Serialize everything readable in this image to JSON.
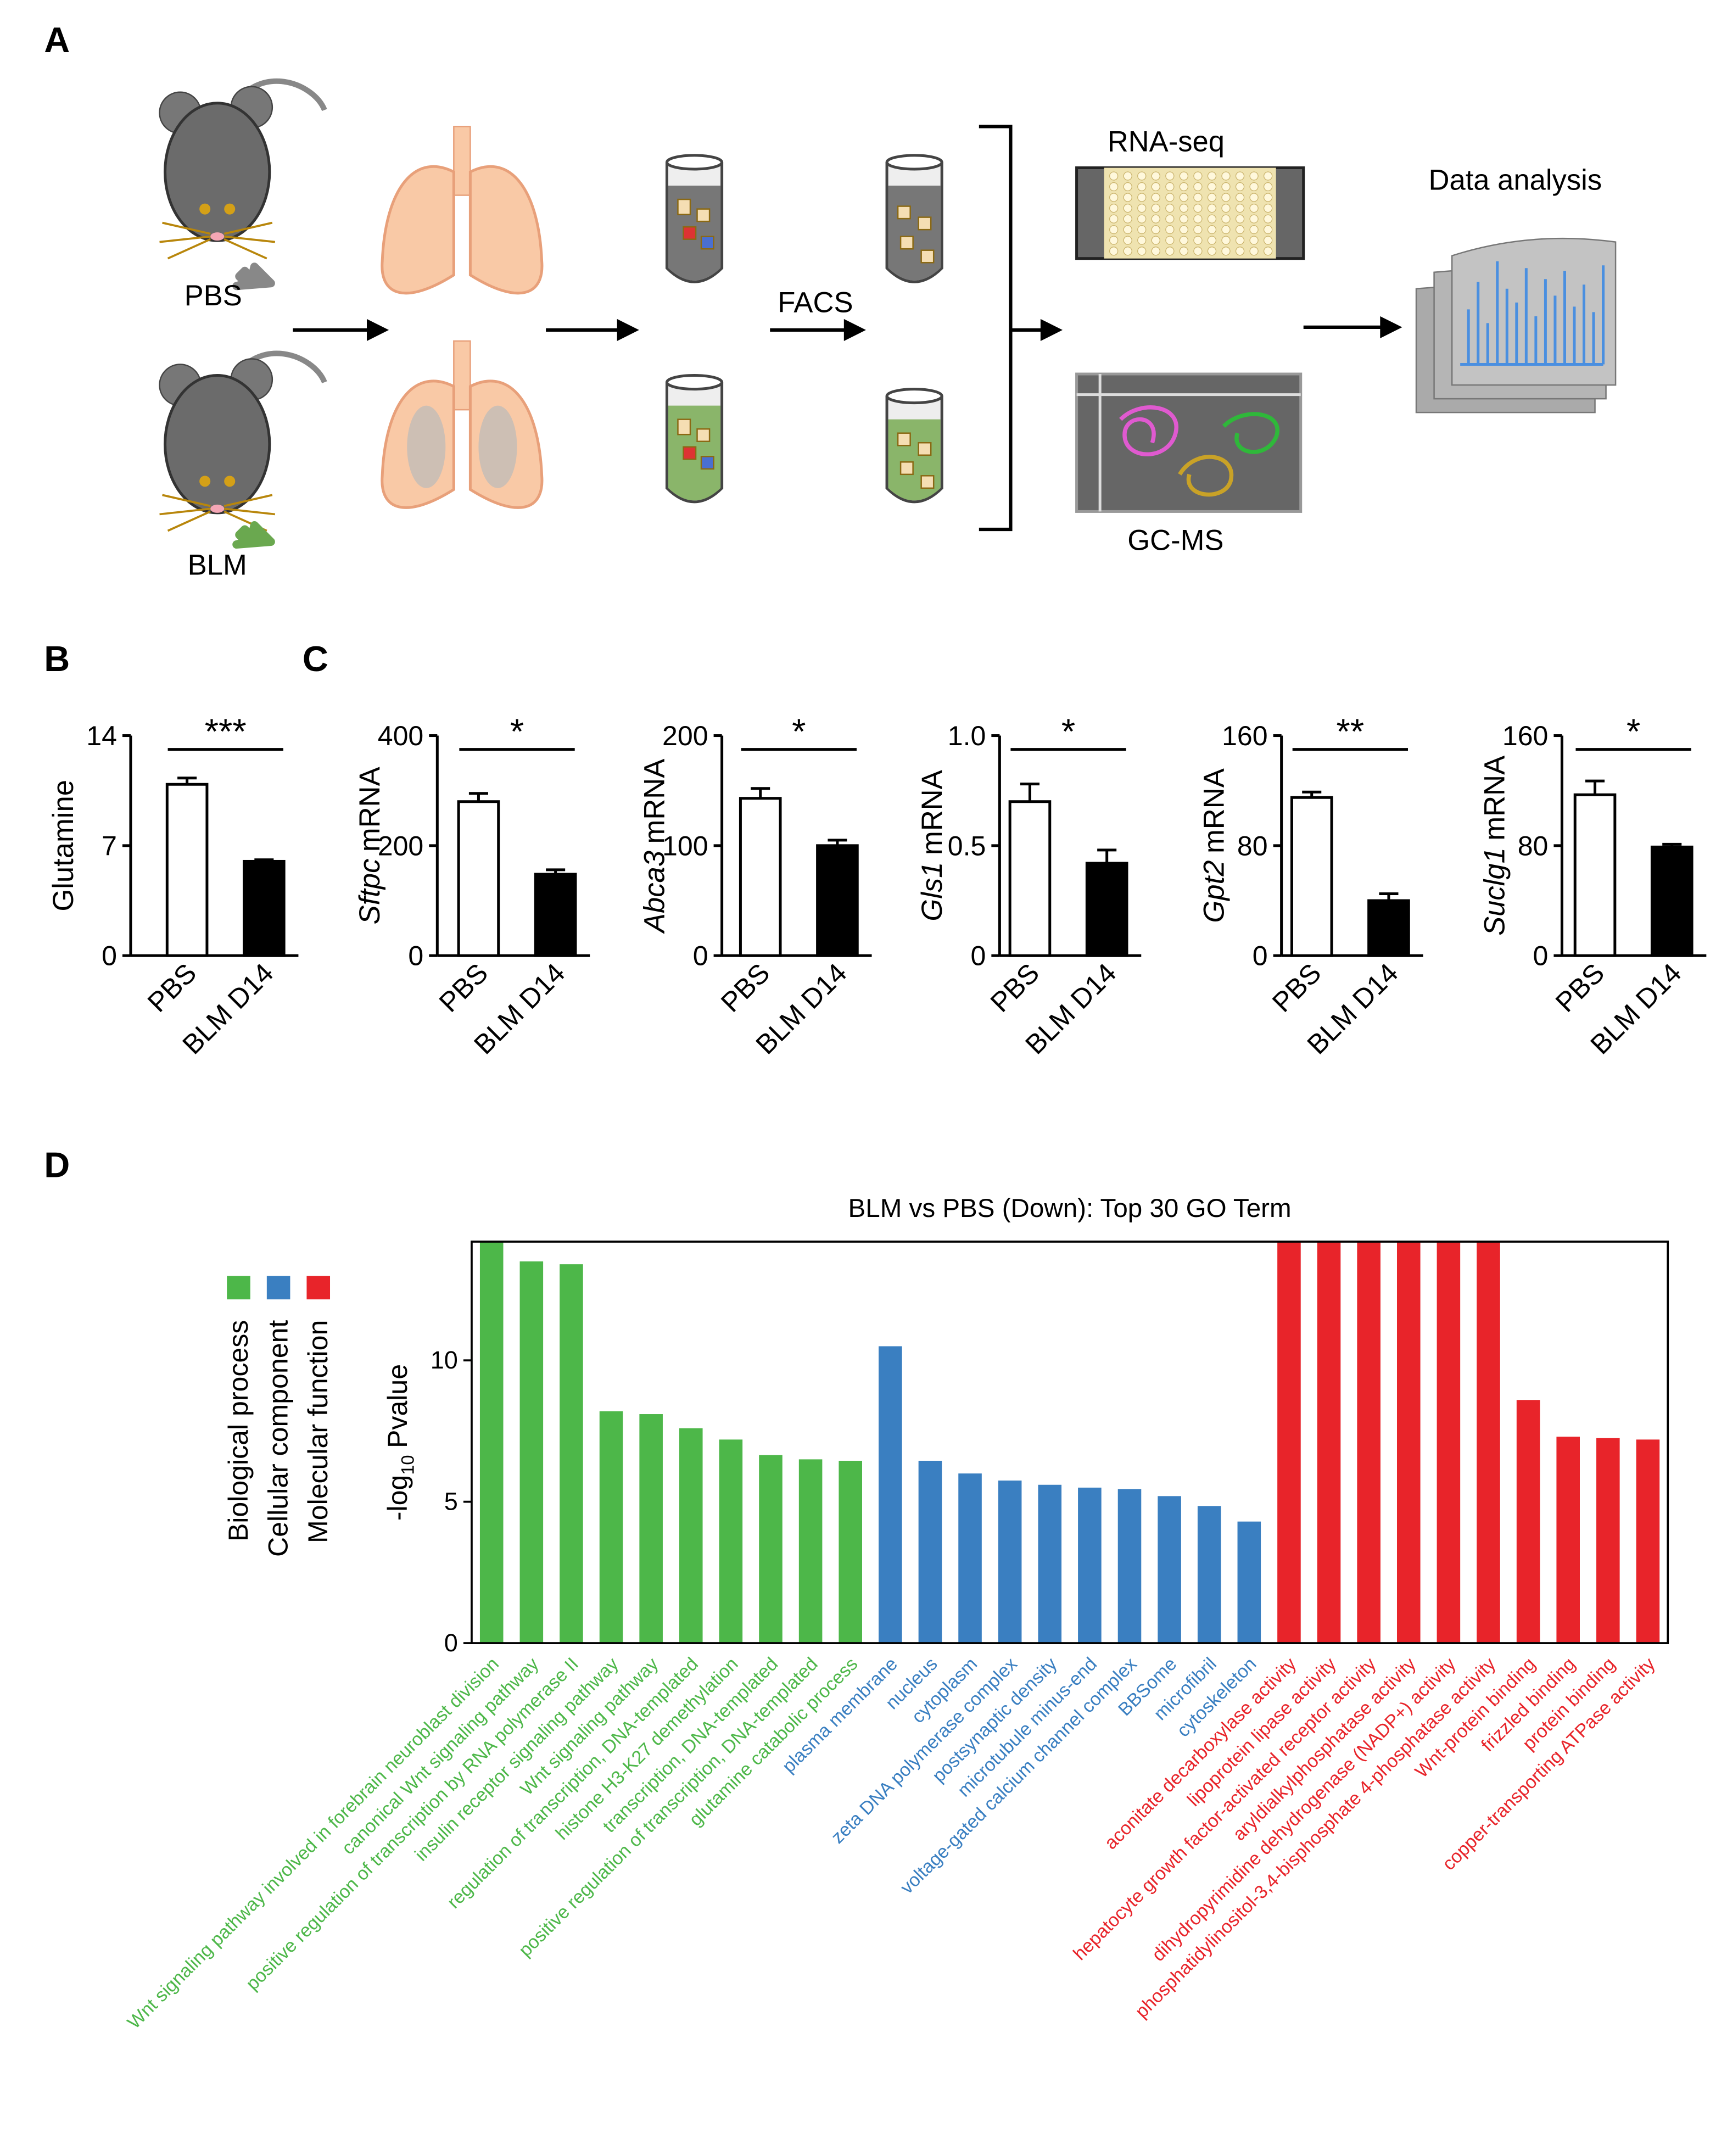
{
  "panel_labels": [
    "A",
    "B",
    "C",
    "D"
  ],
  "diagram": {
    "pbs": "PBS",
    "blm": "BLM",
    "facs": "FACS",
    "rnaseq": "RNA-seq",
    "gcms": "GC-MS",
    "analysis": "Data analysis"
  },
  "chart_data": [
    {
      "type": "bar",
      "ylabel": "Glutamine",
      "categories": [
        "PBS",
        "BLM D14"
      ],
      "values": [
        10.9,
        6.0
      ],
      "errors": [
        0.4,
        0.1
      ],
      "colors": [
        "#ffffff",
        "#000000"
      ],
      "ylim": [
        0,
        14
      ],
      "yticks": [
        0,
        7,
        14
      ],
      "annotation": "***"
    },
    {
      "type": "bar",
      "ylabel_italic": "Sftpc",
      "ylabel": "mRNA",
      "categories": [
        "PBS",
        "BLM D14"
      ],
      "values": [
        280,
        148
      ],
      "errors": [
        15,
        8
      ],
      "colors": [
        "#ffffff",
        "#000000"
      ],
      "ylim": [
        0,
        400
      ],
      "yticks": [
        0,
        200,
        400
      ],
      "annotation": "*"
    },
    {
      "type": "bar",
      "ylabel_italic": "Abca3",
      "ylabel": "mRNA",
      "categories": [
        "PBS",
        "BLM D14"
      ],
      "values": [
        143,
        100
      ],
      "errors": [
        9,
        5
      ],
      "colors": [
        "#ffffff",
        "#000000"
      ],
      "ylim": [
        0,
        200
      ],
      "yticks": [
        0,
        100,
        200
      ],
      "annotation": "*"
    },
    {
      "type": "bar",
      "ylabel_italic": "Gls1",
      "ylabel": "mRNA",
      "categories": [
        "PBS",
        "BLM D14"
      ],
      "values": [
        0.7,
        0.42
      ],
      "errors": [
        0.08,
        0.06
      ],
      "colors": [
        "#ffffff",
        "#000000"
      ],
      "ylim": [
        0,
        1
      ],
      "yticks": [
        0,
        0.5,
        {
          "value": 1,
          "label": "1.0"
        }
      ],
      "annotation": "*"
    },
    {
      "type": "bar",
      "ylabel_italic": "Gpt2",
      "ylabel": "mRNA",
      "categories": [
        "PBS",
        "BLM D14"
      ],
      "values": [
        115,
        40
      ],
      "errors": [
        4,
        5
      ],
      "colors": [
        "#ffffff",
        "#000000"
      ],
      "ylim": [
        0,
        160
      ],
      "yticks": [
        0,
        80,
        160
      ],
      "annotation": "**"
    },
    {
      "type": "bar",
      "ylabel_italic": "Suclg1",
      "ylabel": "mRNA",
      "categories": [
        "PBS",
        "BLM D14"
      ],
      "values": [
        117,
        79
      ],
      "errors": [
        10,
        2
      ],
      "colors": [
        "#ffffff",
        "#000000"
      ],
      "ylim": [
        0,
        160
      ],
      "yticks": [
        0,
        80,
        160
      ],
      "annotation": "*"
    },
    {
      "type": "grouped-bar",
      "title": "BLM vs PBS (Down): Top 30 GO Term",
      "ylabel": "-log",
      "ylabel_subscript": "10",
      "ylabel_end": "Pvalue",
      "categories": [
        "Wnt signaling pathway involved in forebrain neuroblast division",
        "canonical Wnt signaling pathway",
        "positive regulation of transcription by RNA polymerase II",
        "insulin receptor signaling pathway",
        "Wnt signaling pathway",
        "regulation of transcription, DNA-templated",
        "histone H3-K27 demethylation",
        "transcription, DNA-templated",
        "positive regulation of transcription, DNA-templated",
        "glutamine catabolic process",
        "plasma membrane",
        "nucleus",
        "cytoplasm",
        "zeta DNA polymerase complex",
        "postsynaptic density",
        "microtubule minus-end",
        "voltage-gated calcium channel complex",
        "BBSome",
        "microfibril",
        "cytoskeleton",
        "aconitate decarboxylase activity",
        "lipoprotein lipase activity",
        "hepatocyte growth factor-activated receptor activity",
        "aryldialkylphosphatase activity",
        "dihydropyrimidine dehydrogenase (NADP+) activity",
        "phosphatidylinositol-3,4-bisphosphate 4-phosphatase activity",
        "Wnt-protein binding",
        "frizzled binding",
        "protein binding",
        "copper-transporting ATPase activity"
      ],
      "series": [
        {
          "name": "Biological process",
          "color": "#4db749",
          "values": [
            14.2,
            13.5,
            13.4,
            8.2,
            8.1,
            7.6,
            7.2,
            6.65,
            6.5,
            6.45,
            null,
            null,
            null,
            null,
            null,
            null,
            null,
            null,
            null,
            null,
            null,
            null,
            null,
            null,
            null,
            null,
            null,
            null,
            null,
            null
          ]
        },
        {
          "name": "Cellular component",
          "color": "#3a7fc1",
          "values": [
            null,
            null,
            null,
            null,
            null,
            null,
            null,
            null,
            null,
            null,
            10.5,
            6.45,
            6.0,
            5.75,
            5.6,
            5.5,
            5.45,
            5.2,
            4.85,
            4.3,
            null,
            null,
            null,
            null,
            null,
            null,
            null,
            null,
            null,
            null
          ]
        },
        {
          "name": "Molecular function",
          "color": "#e8242a",
          "values": [
            null,
            null,
            null,
            null,
            null,
            null,
            null,
            null,
            null,
            null,
            null,
            null,
            null,
            null,
            null,
            null,
            null,
            null,
            null,
            null,
            14.2,
            14.2,
            14.2,
            14.2,
            14.2,
            14.2,
            8.6,
            7.3,
            7.25,
            7.2
          ]
        }
      ],
      "ylim": [
        0,
        14.2
      ],
      "yticks": [
        0,
        5,
        10
      ]
    }
  ]
}
